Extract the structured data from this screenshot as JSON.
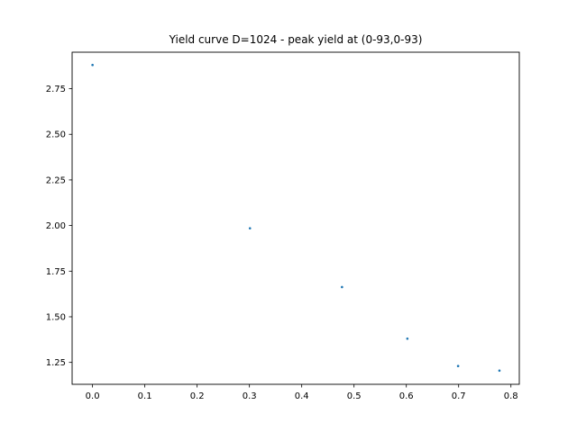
{
  "chart_data": {
    "type": "scatter",
    "title": "Yield curve D=1024 - peak yield at (0-93,0-93)",
    "xlabel": "",
    "ylabel": "",
    "xlim": [
      -0.039,
      0.816
    ],
    "ylim": [
      1.13,
      2.95
    ],
    "x_ticks": [
      0.0,
      0.1,
      0.2,
      0.3,
      0.4,
      0.5,
      0.6,
      0.7,
      0.8
    ],
    "x_tick_labels": [
      "0.0",
      "0.1",
      "0.2",
      "0.3",
      "0.4",
      "0.5",
      "0.6",
      "0.7",
      "0.8"
    ],
    "y_ticks": [
      1.25,
      1.5,
      1.75,
      2.0,
      2.25,
      2.5,
      2.75
    ],
    "y_tick_labels": [
      "1.25",
      "1.50",
      "1.75",
      "2.00",
      "2.25",
      "2.50",
      "2.75"
    ],
    "grid": false,
    "series": [
      {
        "color": "#1f77b4",
        "points": [
          {
            "x": 0.0,
            "y": 2.88
          },
          {
            "x": 0.301,
            "y": 1.985
          },
          {
            "x": 0.477,
            "y": 1.663
          },
          {
            "x": 0.602,
            "y": 1.38
          },
          {
            "x": 0.699,
            "y": 1.23
          },
          {
            "x": 0.778,
            "y": 1.205
          }
        ]
      }
    ]
  }
}
